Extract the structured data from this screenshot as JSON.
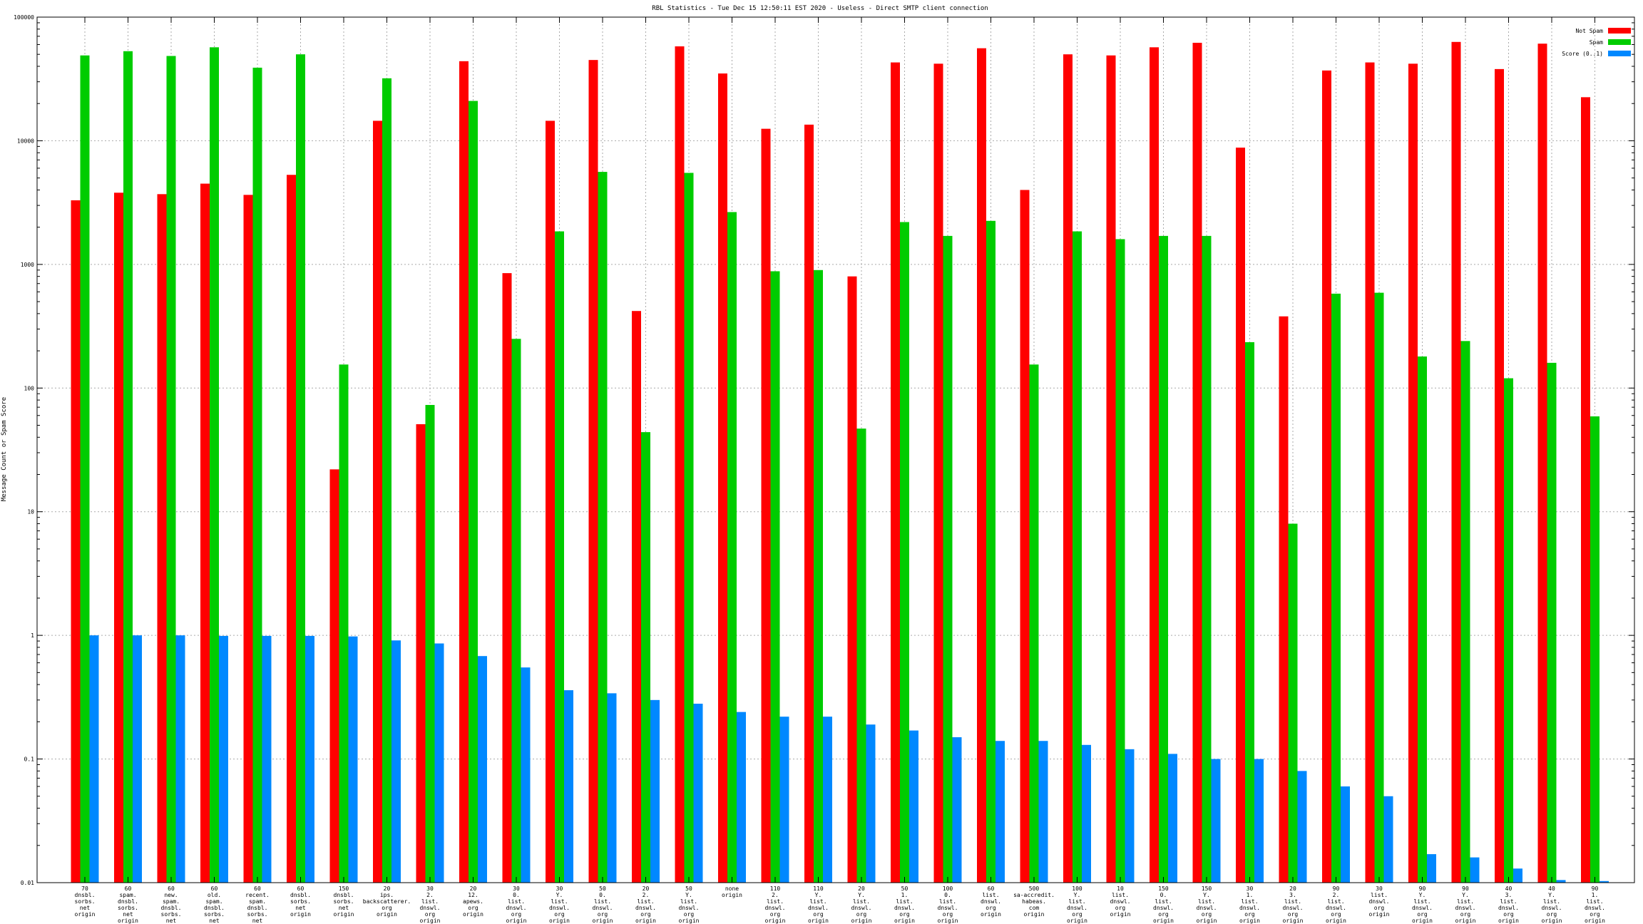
{
  "chart_data": {
    "type": "bar",
    "title": "RBL Statistics - Tue Dec 15 12:50:11 EST 2020 - Useless - Direct SMTP client connection",
    "ylabel": "Message Count or Spam Score",
    "xlabel": "",
    "yscale": "log",
    "ylim": [
      0.01,
      100000
    ],
    "yticks": [
      "0.01",
      "0.1",
      "1",
      "10",
      "100",
      "1000",
      "10000",
      "100000"
    ],
    "grid": true,
    "legend_position": "top-right",
    "categories": [
      [
        "70",
        "dnsbl.",
        "sorbs.",
        "net",
        "origin"
      ],
      [
        "60",
        "spam.",
        "dnsbl.",
        "sorbs.",
        "net",
        "origin"
      ],
      [
        "60",
        "new.",
        "spam.",
        "dnsbl.",
        "sorbs.",
        "net",
        "origin"
      ],
      [
        "60",
        "old.",
        "spam.",
        "dnsbl.",
        "sorbs.",
        "net",
        "origin"
      ],
      [
        "60",
        "recent.",
        "spam.",
        "dnsbl.",
        "sorbs.",
        "net",
        "origin"
      ],
      [
        "60",
        "dnsbl.",
        "sorbs.",
        "net",
        "origin"
      ],
      [
        "150",
        "dnsbl.",
        "sorbs.",
        "net",
        "origin"
      ],
      [
        "20",
        "ips.",
        "backscatterer.",
        "org",
        "origin"
      ],
      [
        "30",
        "2.",
        "list.",
        "dnswl.",
        "org",
        "origin"
      ],
      [
        "20",
        "12.",
        "apews.",
        "org",
        "origin"
      ],
      [
        "30",
        "0.",
        "list.",
        "dnswl.",
        "org",
        "origin"
      ],
      [
        "30",
        "Y.",
        "list.",
        "dnswl.",
        "org",
        "origin"
      ],
      [
        "50",
        "0.",
        "list.",
        "dnswl.",
        "org",
        "origin"
      ],
      [
        "20",
        "2.",
        "list.",
        "dnswl.",
        "org",
        "origin"
      ],
      [
        "50",
        "Y.",
        "list.",
        "dnswl.",
        "org",
        "origin"
      ],
      [
        "none",
        "origin"
      ],
      [
        "110",
        "2.",
        "list.",
        "dnswl.",
        "org",
        "origin"
      ],
      [
        "110",
        "Y.",
        "list.",
        "dnswl.",
        "org",
        "origin"
      ],
      [
        "20",
        "Y.",
        "list.",
        "dnswl.",
        "org",
        "origin"
      ],
      [
        "50",
        "1.",
        "list.",
        "dnswl.",
        "org",
        "origin"
      ],
      [
        "100",
        "0.",
        "list.",
        "dnswl.",
        "org",
        "origin"
      ],
      [
        "60",
        "list.",
        "dnswl.",
        "org",
        "origin"
      ],
      [
        "500",
        "sa-accredit.",
        "habeas.",
        "com",
        "origin"
      ],
      [
        "100",
        "Y.",
        "list.",
        "dnswl.",
        "org",
        "origin"
      ],
      [
        "10",
        "list.",
        "dnswl.",
        "org",
        "origin"
      ],
      [
        "150",
        "0.",
        "list.",
        "dnswl.",
        "org",
        "origin"
      ],
      [
        "150",
        "Y.",
        "list.",
        "dnswl.",
        "org",
        "origin"
      ],
      [
        "30",
        "1.",
        "list.",
        "dnswl.",
        "org",
        "origin"
      ],
      [
        "20",
        "3.",
        "list.",
        "dnswl.",
        "org",
        "origin"
      ],
      [
        "90",
        "2.",
        "list.",
        "dnswl.",
        "org",
        "origin"
      ],
      [
        "30",
        "list.",
        "dnswl.",
        "org",
        "origin"
      ],
      [
        "90",
        "Y.",
        "list.",
        "dnswl.",
        "org",
        "origin"
      ],
      [
        "90",
        "Y.",
        "list.",
        "dnswl.",
        "org",
        "origin"
      ],
      [
        "40",
        "3.",
        "list.",
        "dnswl.",
        "org",
        "origin"
      ],
      [
        "40",
        "Y.",
        "list.",
        "dnswl.",
        "org",
        "origin"
      ],
      [
        "90",
        "1.",
        "list.",
        "dnswl.",
        "org",
        "origin"
      ]
    ],
    "series": [
      {
        "name": "Not Spam",
        "color": "#ff0000",
        "values": [
          3300,
          3800,
          3700,
          4500,
          3650,
          5300,
          22,
          14500,
          51,
          44000,
          850,
          14500,
          45000,
          420,
          58000,
          35000,
          12500,
          13500,
          800,
          43000,
          42000,
          56000,
          4000,
          50000,
          49000,
          57000,
          62000,
          8800,
          380,
          37000,
          43000,
          42000,
          63000,
          38000,
          61000,
          22500
        ]
      },
      {
        "name": "Spam",
        "color": "#00cc00",
        "values": [
          49000,
          53000,
          48500,
          57000,
          39000,
          50000,
          155,
          32000,
          73,
          21000,
          250,
          1850,
          5600,
          44,
          5500,
          2650,
          880,
          900,
          47,
          2200,
          1700,
          2250,
          155,
          1850,
          1600,
          1700,
          1700,
          235,
          8,
          580,
          590,
          180,
          240,
          120,
          160,
          59
        ]
      },
      {
        "name": "Score (0..1)",
        "color": "#0088ff",
        "values": [
          1.0,
          1.0,
          1.0,
          0.99,
          0.99,
          0.99,
          0.98,
          0.91,
          0.86,
          0.68,
          0.55,
          0.36,
          0.34,
          0.3,
          0.28,
          0.24,
          0.22,
          0.22,
          0.19,
          0.17,
          0.15,
          0.14,
          0.14,
          0.13,
          0.12,
          0.11,
          0.1,
          0.1,
          0.08,
          0.06,
          0.05,
          0.017,
          0.016,
          0.013,
          0.0105,
          0.0103
        ]
      }
    ]
  }
}
